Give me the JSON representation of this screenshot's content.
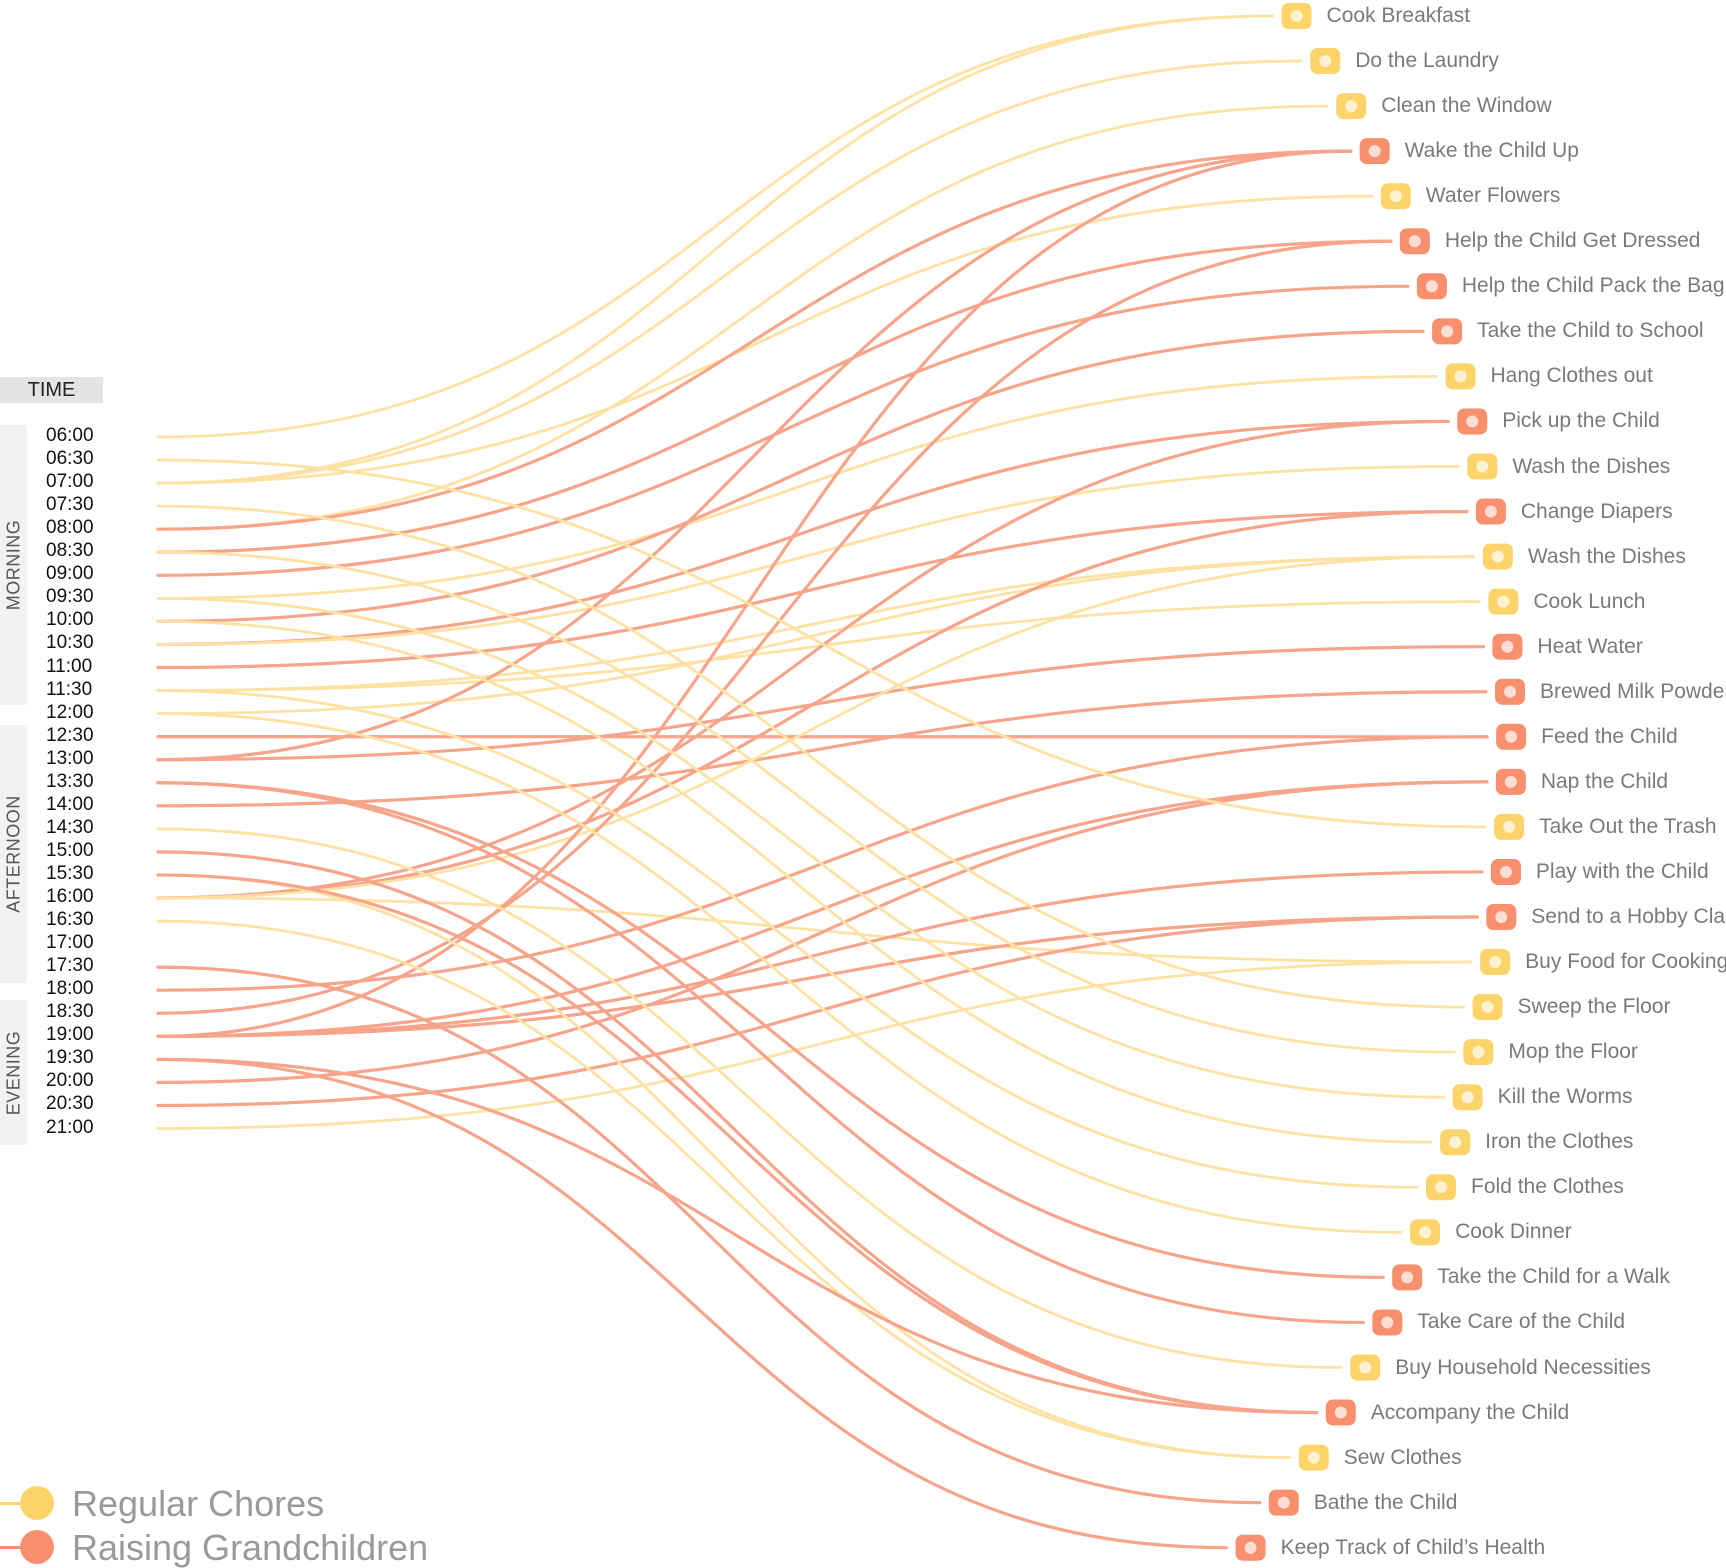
{
  "time_header": "TIME",
  "periods": [
    {
      "label": "MORNING"
    },
    {
      "label": "AFTERNOON"
    },
    {
      "label": "EVENING"
    }
  ],
  "times": [
    "06:00",
    "06:30",
    "07:00",
    "07:30",
    "08:00",
    "08:30",
    "09:00",
    "09:30",
    "10:00",
    "10:30",
    "11:00",
    "11:30",
    "12:00",
    "12:30",
    "13:00",
    "13:30",
    "14:00",
    "14:30",
    "15:00",
    "15:30",
    "16:00",
    "16:30",
    "17:00",
    "17:30",
    "18:00",
    "18:30",
    "19:00",
    "19:30",
    "20:00",
    "20:30",
    "21:00"
  ],
  "categories": {
    "regular": {
      "label": "Regular Chores",
      "color": "#FDD46A",
      "line_color": "#FDE2A4"
    },
    "raising": {
      "label": "Raising Grandchildren",
      "color": "#F8906E",
      "line_color": "#F6A48A"
    }
  },
  "chores": [
    {
      "label": "Cook Breakfast",
      "category": "regular",
      "icon": "chef-hat-icon"
    },
    {
      "label": "Do the Laundry",
      "category": "regular",
      "icon": "washing-machine-icon"
    },
    {
      "label": "Clean the Window",
      "category": "regular",
      "icon": "window-icon"
    },
    {
      "label": "Wake the Child Up",
      "category": "raising",
      "icon": "alarm-clock-icon"
    },
    {
      "label": "Water Flowers",
      "category": "regular",
      "icon": "watering-can-icon"
    },
    {
      "label": "Help the Child Get Dressed",
      "category": "raising",
      "icon": "baby-onesie-icon"
    },
    {
      "label": "Help the Child Pack the Bag",
      "category": "raising",
      "icon": "backpack-icon"
    },
    {
      "label": "Take the Child to School",
      "category": "raising",
      "icon": "school-building-icon"
    },
    {
      "label": "Hang Clothes out",
      "category": "regular",
      "icon": "t-shirt-icon"
    },
    {
      "label": "Pick up the Child",
      "category": "raising",
      "icon": "scooter-icon"
    },
    {
      "label": "Wash the Dishes",
      "category": "regular",
      "icon": "rubber-glove-icon"
    },
    {
      "label": "Change Diapers",
      "category": "raising",
      "icon": "diaper-icon"
    },
    {
      "label": "Wash the Dishes",
      "category": "regular",
      "icon": "detergent-bottle-icon"
    },
    {
      "label": "Cook Lunch",
      "category": "regular",
      "icon": "chef-hat-icon"
    },
    {
      "label": "Heat Water",
      "category": "raising",
      "icon": "kettle-icon"
    },
    {
      "label": "Brewed Milk Powder",
      "category": "raising",
      "icon": "baby-bottle-icon"
    },
    {
      "label": "Feed the Child",
      "category": "raising",
      "icon": "spoon-fork-icon"
    },
    {
      "label": "Nap the Child",
      "category": "raising",
      "icon": "crib-mobile-icon"
    },
    {
      "label": "Take Out the Trash",
      "category": "regular",
      "icon": "trash-bag-icon"
    },
    {
      "label": "Play with the Child",
      "category": "raising",
      "icon": "rocking-horse-icon"
    },
    {
      "label": "Send to a Hobby Class",
      "category": "raising",
      "icon": "piano-icon"
    },
    {
      "label": "Buy Food for Cooking",
      "category": "regular",
      "icon": "groceries-icon"
    },
    {
      "label": "Sweep the Floor",
      "category": "regular",
      "icon": "vacuum-icon"
    },
    {
      "label": "Mop the Floor",
      "category": "regular",
      "icon": "mop-icon"
    },
    {
      "label": "Kill the Worms",
      "category": "regular",
      "icon": "bug-spray-icon"
    },
    {
      "label": "Iron the Clothes",
      "category": "regular",
      "icon": "ironing-board-icon"
    },
    {
      "label": "Fold the Clothes",
      "category": "regular",
      "icon": "folded-shirt-icon"
    },
    {
      "label": "Cook Dinner",
      "category": "regular",
      "icon": "chef-hat-icon"
    },
    {
      "label": "Take the Child for a Walk",
      "category": "raising",
      "icon": "stroller-icon"
    },
    {
      "label": "Take Care of the Child",
      "category": "raising",
      "icon": "mother-child-icon"
    },
    {
      "label": "Buy Household Necessities",
      "category": "regular",
      "icon": "shopping-cart-icon"
    },
    {
      "label": "Accompany the Child",
      "category": "raising",
      "icon": "crawling-baby-icon"
    },
    {
      "label": "Sew Clothes",
      "category": "regular",
      "icon": "needle-thread-icon"
    },
    {
      "label": "Bathe the Child",
      "category": "raising",
      "icon": "bathtub-icon"
    },
    {
      "label": "Keep Track of Child’s Health",
      "category": "raising",
      "icon": "first-aid-kit-icon"
    }
  ],
  "links": [
    {
      "time": "06:00",
      "chore": 0
    },
    {
      "time": "07:00",
      "chore": 0
    },
    {
      "time": "07:00",
      "chore": 1
    },
    {
      "time": "07:00",
      "chore": 4
    },
    {
      "time": "08:00",
      "chore": 2
    },
    {
      "time": "08:00",
      "chore": 3
    },
    {
      "time": "08:30",
      "chore": 5
    },
    {
      "time": "09:00",
      "chore": 6
    },
    {
      "time": "09:30",
      "chore": 8
    },
    {
      "time": "10:00",
      "chore": 7
    },
    {
      "time": "10:30",
      "chore": 9
    },
    {
      "time": "10:30",
      "chore": 10
    },
    {
      "time": "11:00",
      "chore": 11
    },
    {
      "time": "11:30",
      "chore": 12
    },
    {
      "time": "11:30",
      "chore": 13
    },
    {
      "time": "12:00",
      "chore": 12
    },
    {
      "time": "13:00",
      "chore": 14
    },
    {
      "time": "13:00",
      "chore": 3
    },
    {
      "time": "12:30",
      "chore": 16
    },
    {
      "time": "14:00",
      "chore": 15
    },
    {
      "time": "16:00",
      "chore": 9
    },
    {
      "time": "16:00",
      "chore": 11
    },
    {
      "time": "16:00",
      "chore": 12
    },
    {
      "time": "16:00",
      "chore": 21
    },
    {
      "time": "18:30",
      "chore": 5
    },
    {
      "time": "19:00",
      "chore": 3
    },
    {
      "time": "19:00",
      "chore": 17
    },
    {
      "time": "19:00",
      "chore": 19
    },
    {
      "time": "19:00",
      "chore": 20
    },
    {
      "time": "18:00",
      "chore": 16
    },
    {
      "time": "20:00",
      "chore": 17
    },
    {
      "time": "20:30",
      "chore": 20
    },
    {
      "time": "21:00",
      "chore": 21
    },
    {
      "time": "06:30",
      "chore": 18
    },
    {
      "time": "07:30",
      "chore": 22
    },
    {
      "time": "08:30",
      "chore": 23
    },
    {
      "time": "09:30",
      "chore": 24
    },
    {
      "time": "10:00",
      "chore": 25
    },
    {
      "time": "11:30",
      "chore": 26
    },
    {
      "time": "12:00",
      "chore": 27
    },
    {
      "time": "14:30",
      "chore": 30
    },
    {
      "time": "15:00",
      "chore": 31
    },
    {
      "time": "15:30",
      "chore": 32
    },
    {
      "time": "16:30",
      "chore": 32
    },
    {
      "time": "13:30",
      "chore": 28
    },
    {
      "time": "13:30",
      "chore": 29
    },
    {
      "time": "15:30",
      "chore": 31
    },
    {
      "time": "17:30",
      "chore": 33
    },
    {
      "time": "19:30",
      "chore": 34
    },
    {
      "time": "19:30",
      "chore": 31
    }
  ]
}
